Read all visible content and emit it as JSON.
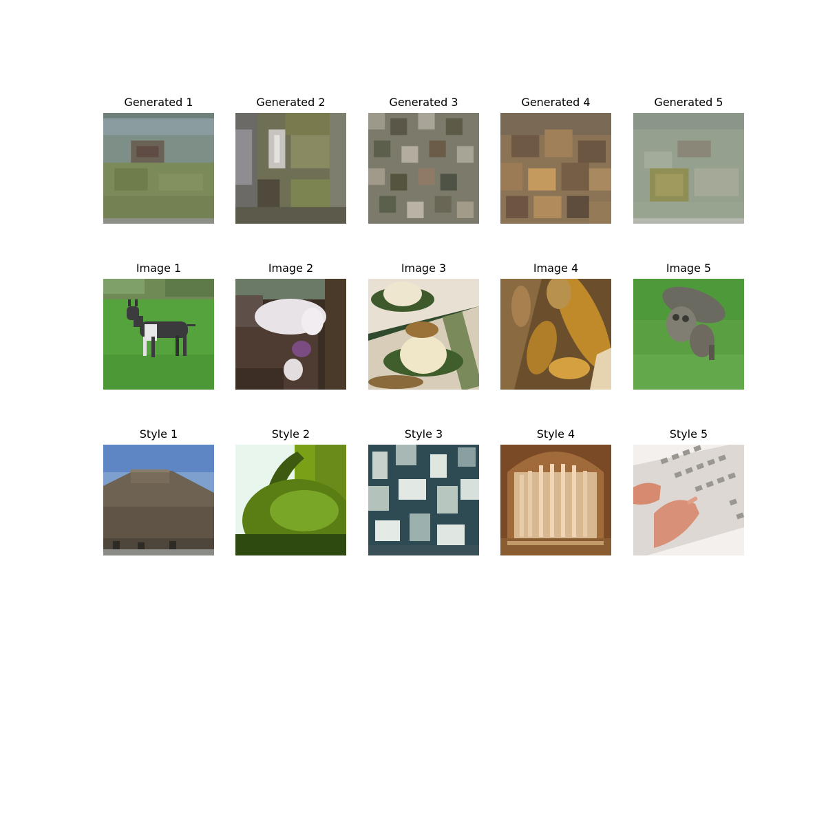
{
  "figure": {
    "rows": [
      {
        "row_name": "generated",
        "panels": [
          {
            "title": "Generated 1"
          },
          {
            "title": "Generated 2"
          },
          {
            "title": "Generated 3"
          },
          {
            "title": "Generated 4"
          },
          {
            "title": "Generated 5"
          }
        ]
      },
      {
        "row_name": "image",
        "panels": [
          {
            "title": "Image 1"
          },
          {
            "title": "Image 2"
          },
          {
            "title": "Image 3"
          },
          {
            "title": "Image 4"
          },
          {
            "title": "Image 5"
          }
        ]
      },
      {
        "row_name": "style",
        "panels": [
          {
            "title": "Style 1"
          },
          {
            "title": "Style 2"
          },
          {
            "title": "Style 3"
          },
          {
            "title": "Style 4"
          },
          {
            "title": "Style 5"
          }
        ]
      }
    ]
  }
}
